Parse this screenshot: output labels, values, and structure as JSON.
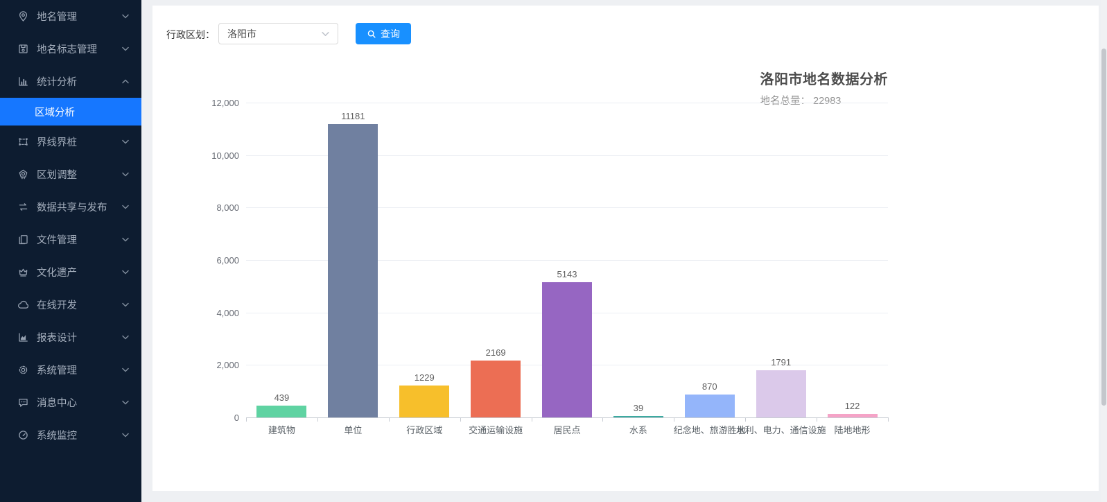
{
  "ui_colors": {
    "sidebar_bg": "#0d1c30",
    "sidebar_active": "#1677ff",
    "accent_button": "#1890ff"
  },
  "sidebar": {
    "items": [
      {
        "label": "地名管理",
        "icon": "location-pin",
        "chevron": "down"
      },
      {
        "label": "地名标志管理",
        "icon": "signpost",
        "chevron": "down"
      },
      {
        "label": "统计分析",
        "icon": "bar-chart",
        "chevron": "up",
        "expanded": true,
        "children": [
          {
            "label": "区域分析",
            "active": true
          }
        ]
      },
      {
        "label": "界线界桩",
        "icon": "boundary-frame",
        "chevron": "down"
      },
      {
        "label": "区划调整",
        "icon": "badge",
        "chevron": "down"
      },
      {
        "label": "数据共享与发布",
        "icon": "share-swap",
        "chevron": "down"
      },
      {
        "label": "文件管理",
        "icon": "files",
        "chevron": "down"
      },
      {
        "label": "文化遗产",
        "icon": "heritage-crown",
        "chevron": "down"
      },
      {
        "label": "在线开发",
        "icon": "cloud",
        "chevron": "down"
      },
      {
        "label": "报表设计",
        "icon": "area-chart",
        "chevron": "down"
      },
      {
        "label": "系统管理",
        "icon": "gear",
        "chevron": "down"
      },
      {
        "label": "消息中心",
        "icon": "message-bubble",
        "chevron": "down"
      },
      {
        "label": "系统监控",
        "icon": "gauge",
        "chevron": "down"
      }
    ]
  },
  "toolbar": {
    "region_label": "行政区划：",
    "region_value": "洛阳市",
    "search_button": "查询"
  },
  "chart_data": {
    "type": "bar",
    "title": "洛阳市地名数据分析",
    "subtitle": "地名总量： 22983",
    "total": 22983,
    "categories": [
      "建筑物",
      "单位",
      "行政区域",
      "交通运输设施",
      "居民点",
      "水系",
      "纪念地、旅游胜地",
      "水利、电力、通信设施",
      "陆地地形"
    ],
    "values": [
      439,
      11181,
      1229,
      2169,
      5143,
      39,
      870,
      1791,
      122
    ],
    "colors": [
      "#5fd3a2",
      "#7080a0",
      "#f7bf2b",
      "#ec6e54",
      "#9666c2",
      "#3caaa0",
      "#94b5fa",
      "#dbc9ea",
      "#f5a3c7"
    ],
    "ylim": [
      0,
      12000
    ],
    "ytick_step": 2000,
    "ytick_labels": [
      "0",
      "2,000",
      "4,000",
      "6,000",
      "8,000",
      "10,000",
      "12,000"
    ],
    "grid": true,
    "legend": false,
    "xlabel": "",
    "ylabel": ""
  }
}
